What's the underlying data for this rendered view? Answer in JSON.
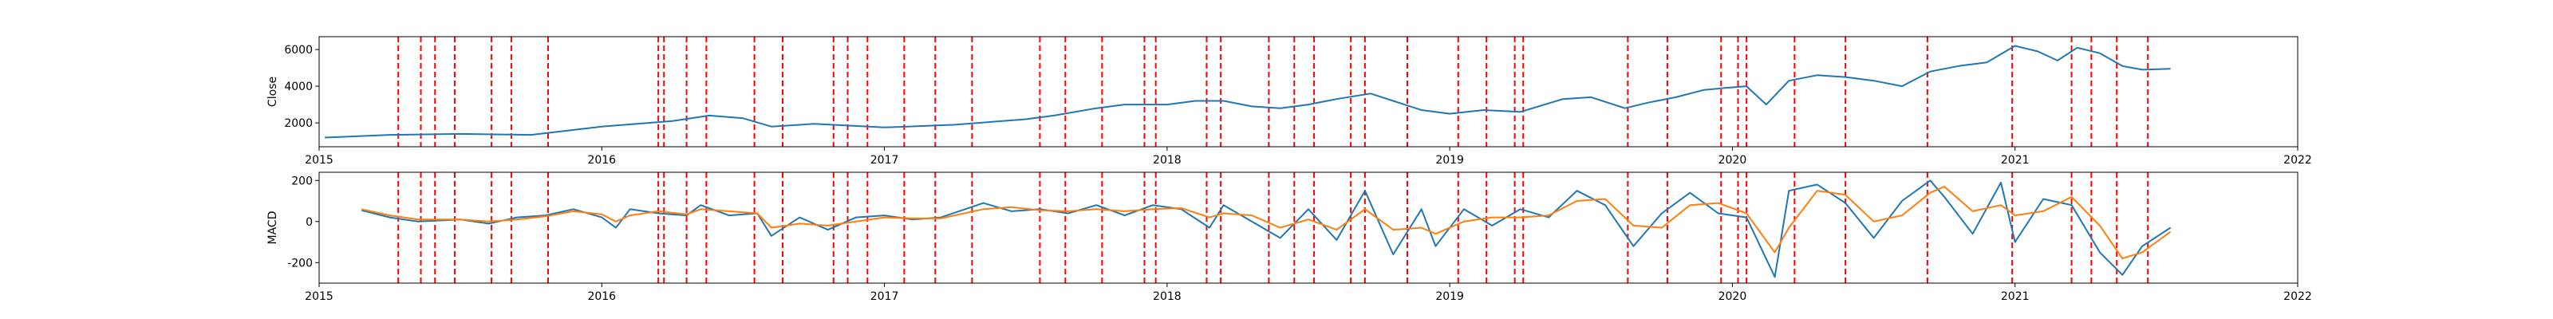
{
  "chart_data": [
    {
      "type": "line",
      "title": "",
      "xlabel": "",
      "ylabel": "Close",
      "x_ticks": [
        "2015",
        "2016",
        "2017",
        "2018",
        "2019",
        "2020",
        "2021",
        "2022"
      ],
      "x_range": [
        2015.0,
        2022.0
      ],
      "ylim": [
        700,
        6700
      ],
      "y_ticks": [
        2000,
        4000,
        6000
      ],
      "grid": false,
      "series": [
        {
          "name": "",
          "color": "#1f77b4",
          "x": [
            2015.02,
            2015.25,
            2015.5,
            2015.75,
            2016.0,
            2016.25,
            2016.38,
            2016.5,
            2016.6,
            2016.75,
            2017.0,
            2017.25,
            2017.5,
            2017.6,
            2017.75,
            2017.85,
            2018.0,
            2018.1,
            2018.2,
            2018.3,
            2018.4,
            2018.5,
            2018.6,
            2018.72,
            2018.8,
            2018.9,
            2019.0,
            2019.12,
            2019.25,
            2019.4,
            2019.5,
            2019.62,
            2019.7,
            2019.8,
            2019.9,
            2019.97,
            2020.05,
            2020.12,
            2020.2,
            2020.3,
            2020.4,
            2020.5,
            2020.6,
            2020.7,
            2020.8,
            2020.9,
            2021.0,
            2021.08,
            2021.15,
            2021.22,
            2021.3,
            2021.38,
            2021.45,
            2021.55
          ],
          "values": [
            1200,
            1350,
            1400,
            1350,
            1800,
            2100,
            2400,
            2250,
            1800,
            1950,
            1750,
            1900,
            2200,
            2400,
            2800,
            3000,
            3000,
            3200,
            3200,
            2900,
            2800,
            3000,
            3300,
            3600,
            3200,
            2700,
            2500,
            2700,
            2600,
            3300,
            3400,
            2800,
            3100,
            3400,
            3800,
            3900,
            4000,
            3000,
            4300,
            4600,
            4500,
            4300,
            4000,
            4800,
            5100,
            5300,
            6200,
            5900,
            5400,
            6100,
            5800,
            5100,
            4900,
            4950
          ]
        }
      ]
    },
    {
      "type": "line",
      "title": "",
      "xlabel": "",
      "ylabel": "MACD",
      "x_ticks": [
        "2015",
        "2016",
        "2017",
        "2018",
        "2019",
        "2020",
        "2021",
        "2022"
      ],
      "x_range": [
        2015.0,
        2022.0
      ],
      "ylim": [
        -300,
        240
      ],
      "y_ticks": [
        -200,
        0,
        200
      ],
      "grid": false,
      "series": [
        {
          "name": "",
          "color": "#1f77b4",
          "x": [
            2015.15,
            2015.25,
            2015.35,
            2015.5,
            2015.6,
            2015.7,
            2015.8,
            2015.9,
            2016.0,
            2016.05,
            2016.1,
            2016.2,
            2016.3,
            2016.35,
            2016.45,
            2016.55,
            2016.6,
            2016.7,
            2016.8,
            2016.9,
            2017.0,
            2017.1,
            2017.2,
            2017.35,
            2017.45,
            2017.55,
            2017.65,
            2017.75,
            2017.85,
            2017.95,
            2018.05,
            2018.15,
            2018.2,
            2018.3,
            2018.4,
            2018.5,
            2018.6,
            2018.7,
            2018.8,
            2018.9,
            2018.95,
            2019.05,
            2019.15,
            2019.25,
            2019.35,
            2019.45,
            2019.55,
            2019.65,
            2019.75,
            2019.85,
            2019.95,
            2020.05,
            2020.15,
            2020.2,
            2020.3,
            2020.4,
            2020.5,
            2020.6,
            2020.7,
            2020.75,
            2020.85,
            2020.95,
            2021.0,
            2021.1,
            2021.2,
            2021.3,
            2021.38,
            2021.45,
            2021.55
          ],
          "values": [
            55,
            20,
            0,
            10,
            -10,
            20,
            30,
            60,
            20,
            -30,
            60,
            40,
            30,
            80,
            30,
            40,
            -70,
            20,
            -40,
            20,
            30,
            10,
            20,
            90,
            50,
            60,
            40,
            80,
            30,
            80,
            60,
            -30,
            80,
            0,
            -80,
            60,
            -90,
            150,
            -160,
            60,
            -120,
            60,
            -20,
            60,
            20,
            150,
            80,
            -120,
            40,
            140,
            40,
            20,
            -270,
            150,
            180,
            90,
            -80,
            100,
            200,
            120,
            -60,
            190,
            -100,
            110,
            80,
            -150,
            -260,
            -120,
            -30
          ]
        },
        {
          "name": "",
          "color": "#ff7f0e",
          "x": [
            2015.15,
            2015.25,
            2015.35,
            2015.5,
            2015.6,
            2015.7,
            2015.8,
            2015.9,
            2016.0,
            2016.05,
            2016.1,
            2016.2,
            2016.3,
            2016.35,
            2016.45,
            2016.55,
            2016.6,
            2016.7,
            2016.8,
            2016.9,
            2017.0,
            2017.1,
            2017.2,
            2017.35,
            2017.45,
            2017.55,
            2017.65,
            2017.75,
            2017.85,
            2017.95,
            2018.05,
            2018.15,
            2018.2,
            2018.3,
            2018.4,
            2018.5,
            2018.6,
            2018.7,
            2018.8,
            2018.9,
            2018.95,
            2019.05,
            2019.15,
            2019.25,
            2019.35,
            2019.45,
            2019.55,
            2019.65,
            2019.75,
            2019.85,
            2019.95,
            2020.05,
            2020.15,
            2020.2,
            2020.3,
            2020.4,
            2020.5,
            2020.6,
            2020.7,
            2020.75,
            2020.85,
            2020.95,
            2021.0,
            2021.1,
            2021.2,
            2021.3,
            2021.38,
            2021.45,
            2021.55
          ],
          "values": [
            60,
            30,
            10,
            10,
            0,
            10,
            25,
            50,
            35,
            0,
            30,
            50,
            35,
            60,
            50,
            40,
            -30,
            -10,
            -20,
            0,
            20,
            15,
            15,
            60,
            70,
            55,
            50,
            60,
            50,
            60,
            65,
            20,
            40,
            30,
            -30,
            10,
            -40,
            60,
            -40,
            -30,
            -60,
            0,
            20,
            20,
            30,
            100,
            110,
            -20,
            -30,
            80,
            90,
            40,
            -150,
            -30,
            150,
            130,
            0,
            30,
            140,
            170,
            50,
            80,
            30,
            50,
            120,
            -20,
            -180,
            -150,
            -50
          ]
        }
      ]
    }
  ],
  "event_lines": {
    "color": "#ff0000",
    "dates": [
      2015.28,
      2015.36,
      2015.41,
      2015.48,
      2015.61,
      2015.68,
      2015.81,
      2016.2,
      2016.22,
      2016.3,
      2016.37,
      2016.54,
      2016.64,
      2016.82,
      2016.87,
      2016.94,
      2017.07,
      2017.18,
      2017.31,
      2017.55,
      2017.64,
      2017.77,
      2017.92,
      2017.96,
      2018.14,
      2018.19,
      2018.36,
      2018.45,
      2018.52,
      2018.65,
      2018.7,
      2018.85,
      2019.03,
      2019.13,
      2019.23,
      2019.26,
      2019.63,
      2019.77,
      2019.96,
      2020.02,
      2020.05,
      2020.22,
      2020.4,
      2020.69,
      2020.99,
      2021.2,
      2021.27,
      2021.36,
      2021.47
    ]
  }
}
